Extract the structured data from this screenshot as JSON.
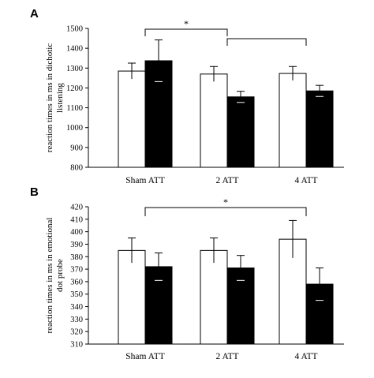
{
  "chart_data": [
    {
      "type": "bar",
      "panel_label": "A",
      "ylabel_lines": [
        "reaction times in ms in dichotic",
        "listening"
      ],
      "categories": [
        "Sham ATT",
        "2 ATT",
        "4 ATT"
      ],
      "ylim": [
        800,
        1500
      ],
      "yticks": [
        800,
        900,
        1000,
        1100,
        1200,
        1300,
        1400,
        1500
      ],
      "series": [
        {
          "values": [
            1285,
            1270,
            1273
          ],
          "errors": [
            40,
            38,
            35
          ],
          "color": "#ffffff"
        },
        {
          "values": [
            1337,
            1155,
            1185
          ],
          "errors": [
            105,
            28,
            28
          ],
          "color": "#000000"
        }
      ],
      "significance": [
        {
          "label": "*",
          "from_category": 0,
          "to_category": 1
        },
        {
          "label": "",
          "from_category": 1,
          "to_category": 2
        }
      ],
      "grid": false,
      "legend": "none"
    },
    {
      "type": "bar",
      "panel_label": "B",
      "ylabel_lines": [
        "reaction times in ms in emotional",
        "dot probe"
      ],
      "categories": [
        "Sham ATT",
        "2 ATT",
        "4 ATT"
      ],
      "ylim": [
        310,
        420
      ],
      "yticks": [
        310,
        320,
        330,
        340,
        350,
        360,
        370,
        380,
        390,
        400,
        410,
        420
      ],
      "series": [
        {
          "values": [
            385,
            385,
            394
          ],
          "errors": [
            10,
            10,
            15
          ],
          "color": "#ffffff"
        },
        {
          "values": [
            372,
            371,
            358
          ],
          "errors": [
            11,
            10,
            13
          ],
          "color": "#000000"
        }
      ],
      "significance": [
        {
          "label": "*",
          "from_category": 0,
          "to_category": 2
        }
      ],
      "grid": false,
      "legend": "none"
    }
  ]
}
